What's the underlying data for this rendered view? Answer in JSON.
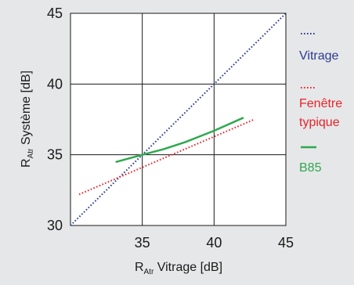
{
  "chart_data": {
    "type": "line",
    "xlabel": {
      "main": "R",
      "sub": "Atr",
      "rest": " Vitrage [dB]"
    },
    "ylabel": {
      "main": "R",
      "sub": "Atr",
      "rest": " Système [dB]"
    },
    "xlim": [
      30,
      45
    ],
    "ylim": [
      30,
      45
    ],
    "xticks": [
      "35",
      "40",
      "45"
    ],
    "yticks": [
      "30",
      "35",
      "40",
      "45"
    ],
    "grid": true,
    "legend_position": "right",
    "series": [
      {
        "name": "Vitrage",
        "color": "#2b3a94",
        "style": "dotted",
        "x": [
          30,
          45
        ],
        "y": [
          30,
          45
        ]
      },
      {
        "name": "Fenêtre typique",
        "name_lines": [
          "Fenêtre",
          "typique"
        ],
        "color": "#e8232a",
        "style": "dotted",
        "x": [
          30.6,
          42.8
        ],
        "y": [
          32.2,
          37.5
        ]
      },
      {
        "name": "B85",
        "color": "#2fa84f",
        "style": "solid",
        "x": [
          33.2,
          35,
          36.5,
          38,
          40,
          42
        ],
        "y": [
          34.5,
          35,
          35.4,
          35.9,
          36.7,
          37.6
        ]
      }
    ]
  }
}
